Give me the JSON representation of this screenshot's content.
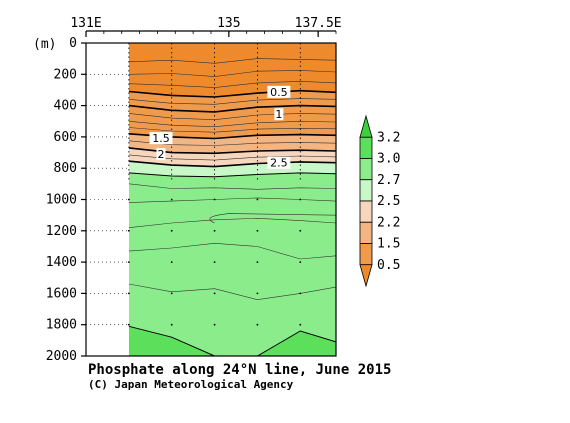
{
  "chart_data": {
    "type": "contour",
    "title": "Phosphate along 24°N line, June 2015",
    "subtitle": "(C) Japan Meteorological Agency",
    "ylabel": "(m)",
    "xlim": [
      131,
      138
    ],
    "ylim": [
      2000,
      0
    ],
    "x_ticks": [
      {
        "value": 131,
        "label": "131E"
      },
      {
        "value": 135,
        "label": "135"
      },
      {
        "value": 137.5,
        "label": "137.5E"
      }
    ],
    "y_ticks": [
      0,
      200,
      400,
      600,
      800,
      1000,
      1200,
      1400,
      1600,
      1800,
      2000
    ],
    "stations_x": [
      132.2,
      133.4,
      134.6,
      135.8,
      137.0
    ],
    "data_extent": {
      "x": [
        132.2,
        138.0
      ],
      "y": [
        0,
        2000
      ]
    },
    "contours": [
      {
        "value": 0.5,
        "label": "0.5",
        "points": [
          [
            132.2,
            310
          ],
          [
            133.4,
            335
          ],
          [
            134.6,
            345
          ],
          [
            135.8,
            320
          ],
          [
            137.0,
            305
          ],
          [
            138,
            315
          ]
        ],
        "label_at": [
          136.4,
          312
        ]
      },
      {
        "value": 1.0,
        "label": "1",
        "points": [
          [
            132.2,
            400
          ],
          [
            133.4,
            430
          ],
          [
            134.6,
            440
          ],
          [
            135.8,
            410
          ],
          [
            137.0,
            400
          ],
          [
            138,
            405
          ]
        ],
        "label_at": [
          136.4,
          455
        ]
      },
      {
        "value": 1.5,
        "label": "1.5",
        "points": [
          [
            132.2,
            580
          ],
          [
            133.4,
            600
          ],
          [
            134.6,
            610
          ],
          [
            135.8,
            590
          ],
          [
            137.0,
            585
          ],
          [
            138,
            590
          ]
        ],
        "label_at": [
          133.1,
          608
        ]
      },
      {
        "value": 2.0,
        "label": "2",
        "points": [
          [
            132.2,
            670
          ],
          [
            133.4,
            700
          ],
          [
            134.6,
            705
          ],
          [
            135.8,
            690
          ],
          [
            137.0,
            685
          ],
          [
            138,
            690
          ]
        ],
        "label_at": [
          133.1,
          710
        ]
      },
      {
        "value": 2.5,
        "label": "2.5",
        "points": [
          [
            132.2,
            755
          ],
          [
            133.4,
            780
          ],
          [
            134.6,
            790
          ],
          [
            135.8,
            770
          ],
          [
            137.0,
            760
          ],
          [
            138,
            765
          ]
        ],
        "label_at": [
          136.4,
          765
        ]
      },
      {
        "value": 2.7,
        "label": "",
        "points": [
          [
            132.2,
            830
          ],
          [
            133.4,
            850
          ],
          [
            134.6,
            855
          ],
          [
            135.8,
            840
          ],
          [
            137.0,
            830
          ],
          [
            138,
            835
          ]
        ]
      },
      {
        "value": 3.0,
        "label": "",
        "points": [
          [
            132.2,
            1810
          ],
          [
            133.4,
            1880
          ],
          [
            134.6,
            2000
          ]
        ]
      },
      {
        "value": 3.0,
        "label": "",
        "points": [
          [
            135.8,
            2000
          ],
          [
            137.0,
            1840
          ],
          [
            138,
            1910
          ]
        ]
      }
    ],
    "colorbar": {
      "labels": [
        "3.2",
        "3.0",
        "2.7",
        "2.5",
        "2.2",
        "1.5",
        "0.5"
      ],
      "bands": [
        {
          "range": [
            3.2,
            null
          ],
          "color": "#3cd23c"
        },
        {
          "range": [
            3.0,
            3.2
          ],
          "color": "#5ce05c"
        },
        {
          "range": [
            2.7,
            3.0
          ],
          "color": "#8aec8a"
        },
        {
          "range": [
            2.5,
            2.7
          ],
          "color": "#c8f7c8"
        },
        {
          "range": [
            2.2,
            2.5
          ],
          "color": "#f6d6bc"
        },
        {
          "range": [
            1.5,
            2.2
          ],
          "color": "#f3b582"
        },
        {
          "range": [
            0.5,
            1.5
          ],
          "color": "#f09a4c"
        },
        {
          "range": [
            null,
            0.5
          ],
          "color": "#ee8a2c"
        }
      ]
    },
    "grid": "dotted"
  }
}
